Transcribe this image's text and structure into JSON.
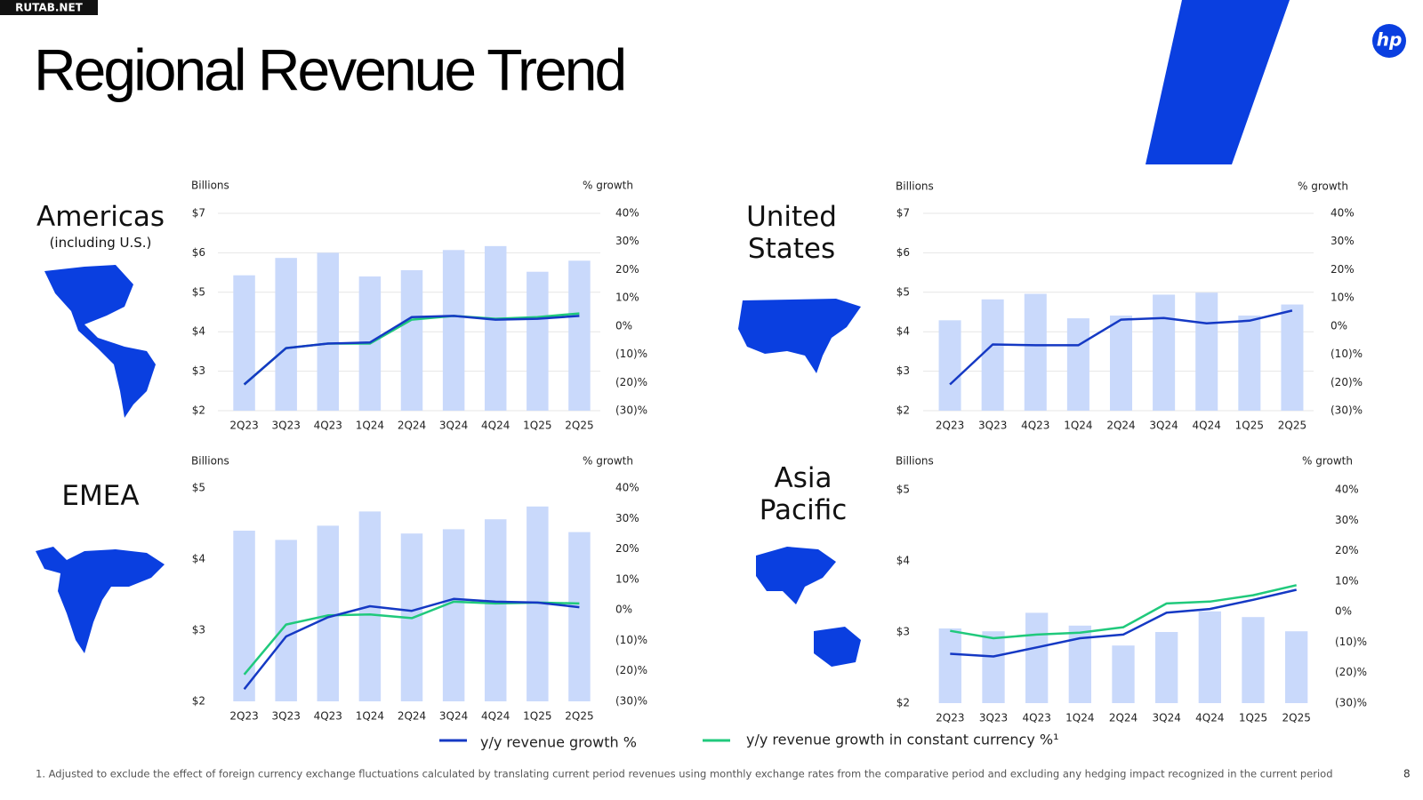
{
  "watermark": "RUTAB.NET",
  "title": "Regional Revenue Trend",
  "logo": "hp",
  "legend": [
    {
      "name": "y/y revenue growth %",
      "color": "#1539c4"
    },
    {
      "name": "y/y revenue growth in constant currency %¹",
      "color": "#20c97c"
    }
  ],
  "footnote": "1.  Adjusted to exclude the effect of foreign currency exchange fluctuations calculated by translating current period revenues using monthly exchange rates from the comparative period and excluding any hedging impact recognized in the current period",
  "page_number": "8",
  "chart_data": [
    {
      "type": "combo",
      "region": "Americas",
      "subtitle": "(including U.S.)",
      "ylabel": "Billions",
      "y2label": "% growth",
      "grid": true,
      "categories": [
        "2Q23",
        "3Q23",
        "4Q23",
        "1Q24",
        "2Q24",
        "3Q24",
        "4Q24",
        "1Q25",
        "2Q25"
      ],
      "ylim": [
        2,
        7
      ],
      "yticks": [
        {
          "value": 2,
          "label": "$2"
        },
        {
          "value": 3,
          "label": "$3"
        },
        {
          "value": 4,
          "label": "$4"
        },
        {
          "value": 5,
          "label": "$5"
        },
        {
          "value": 6,
          "label": "$6"
        },
        {
          "value": 7,
          "label": "$7"
        }
      ],
      "y2lim": [
        -30,
        40
      ],
      "y2ticks": [
        {
          "value": -30,
          "label": "(30)%"
        },
        {
          "value": -20,
          "label": "(20)%"
        },
        {
          "value": -10,
          "label": "(10)%"
        },
        {
          "value": 0,
          "label": "0%"
        },
        {
          "value": 10,
          "label": "10%"
        },
        {
          "value": 20,
          "label": "20%"
        },
        {
          "value": 30,
          "label": "30%"
        },
        {
          "value": 40,
          "label": "40%"
        }
      ],
      "series": [
        {
          "type": "bar",
          "color": "#c9d9fb",
          "values": [
            5.43,
            5.87,
            6.0,
            5.4,
            5.56,
            6.07,
            6.17,
            5.52,
            5.8
          ]
        },
        {
          "type": "line",
          "axis": "y2",
          "color": "#20c97c",
          "values": [
            -20.7,
            -7.8,
            -6.2,
            -6.2,
            2.3,
            3.6,
            2.6,
            3.2,
            4.5
          ]
        },
        {
          "type": "line",
          "axis": "y2",
          "color": "#1539c4",
          "values": [
            -20.7,
            -7.8,
            -6.2,
            -5.8,
            3.2,
            3.6,
            2.3,
            2.6,
            3.6
          ]
        }
      ]
    },
    {
      "type": "combo",
      "region": "United States",
      "ylabel": "Billions",
      "y2label": "% growth",
      "grid": true,
      "categories": [
        "2Q23",
        "3Q23",
        "4Q23",
        "1Q24",
        "2Q24",
        "3Q24",
        "4Q24",
        "1Q25",
        "2Q25"
      ],
      "ylim": [
        2,
        7
      ],
      "yticks": [
        {
          "value": 2,
          "label": "$2"
        },
        {
          "value": 3,
          "label": "$3"
        },
        {
          "value": 4,
          "label": "$4"
        },
        {
          "value": 5,
          "label": "$5"
        },
        {
          "value": 6,
          "label": "$6"
        },
        {
          "value": 7,
          "label": "$7"
        }
      ],
      "y2lim": [
        -30,
        40
      ],
      "y2ticks": [
        {
          "value": -30,
          "label": "(30)%"
        },
        {
          "value": -20,
          "label": "(20)%"
        },
        {
          "value": -10,
          "label": "(10)%"
        },
        {
          "value": 0,
          "label": "0%"
        },
        {
          "value": 10,
          "label": "10%"
        },
        {
          "value": 20,
          "label": "20%"
        },
        {
          "value": 30,
          "label": "30%"
        },
        {
          "value": 40,
          "label": "40%"
        }
      ],
      "series": [
        {
          "type": "bar",
          "color": "#c9d9fb",
          "values": [
            4.29,
            4.82,
            4.96,
            4.34,
            4.41,
            4.94,
            4.99,
            4.41,
            4.69
          ]
        },
        {
          "type": "line",
          "axis": "y2",
          "color": "#1539c4",
          "values": [
            -20.7,
            -6.5,
            -6.8,
            -6.8,
            2.3,
            2.9,
            1.0,
            1.9,
            5.5
          ]
        }
      ]
    },
    {
      "type": "combo",
      "region": "EMEA",
      "ylabel": "Billions",
      "y2label": "% growth",
      "grid": false,
      "categories": [
        "2Q23",
        "3Q23",
        "4Q23",
        "1Q24",
        "2Q24",
        "3Q24",
        "4Q24",
        "1Q25",
        "2Q25"
      ],
      "ylim": [
        2,
        5
      ],
      "yticks": [
        {
          "value": 2,
          "label": "$2"
        },
        {
          "value": 3,
          "label": "$3"
        },
        {
          "value": 4,
          "label": "$4"
        },
        {
          "value": 5,
          "label": "$5"
        }
      ],
      "y2lim": [
        -30,
        40
      ],
      "y2ticks": [
        {
          "value": -30,
          "label": "(30)%"
        },
        {
          "value": -20,
          "label": "(20)%"
        },
        {
          "value": -10,
          "label": "(10)%"
        },
        {
          "value": 0,
          "label": "0%"
        },
        {
          "value": 10,
          "label": "10%"
        },
        {
          "value": 20,
          "label": "20%"
        },
        {
          "value": 30,
          "label": "30%"
        },
        {
          "value": 40,
          "label": "40%"
        }
      ],
      "series": [
        {
          "type": "bar",
          "color": "#c9d9fb",
          "values": [
            4.4,
            4.27,
            4.47,
            4.67,
            4.36,
            4.42,
            4.56,
            4.74,
            4.38
          ]
        },
        {
          "type": "line",
          "axis": "y2",
          "color": "#20c97c",
          "values": [
            -21.2,
            -4.8,
            -1.8,
            -1.5,
            -2.7,
            2.7,
            2.1,
            2.4,
            2.1
          ]
        },
        {
          "type": "line",
          "axis": "y2",
          "color": "#1539c4",
          "values": [
            -26,
            -8.7,
            -2.4,
            1.2,
            -0.3,
            3.6,
            2.7,
            2.4,
            0.9
          ]
        }
      ]
    },
    {
      "type": "combo",
      "region": "Asia Pacific",
      "ylabel": "Billions",
      "y2label": "% growth",
      "grid": false,
      "categories": [
        "2Q23",
        "3Q23",
        "4Q23",
        "1Q24",
        "2Q24",
        "3Q24",
        "4Q24",
        "1Q25",
        "2Q25"
      ],
      "ylim": [
        2,
        5
      ],
      "yticks": [
        {
          "value": 2,
          "label": "$2"
        },
        {
          "value": 3,
          "label": "$3"
        },
        {
          "value": 4,
          "label": "$4"
        },
        {
          "value": 5,
          "label": "$5"
        }
      ],
      "y2lim": [
        -30,
        40
      ],
      "y2ticks": [
        {
          "value": -30,
          "label": "(30)%"
        },
        {
          "value": -20,
          "label": "(20)%"
        },
        {
          "value": -10,
          "label": "(10)%"
        },
        {
          "value": 0,
          "label": "0%"
        },
        {
          "value": 10,
          "label": "10%"
        },
        {
          "value": 20,
          "label": "20%"
        },
        {
          "value": 30,
          "label": "30%"
        },
        {
          "value": 40,
          "label": "40%"
        }
      ],
      "series": [
        {
          "type": "bar",
          "color": "#c9d9fb",
          "values": [
            3.05,
            3.01,
            3.27,
            3.09,
            2.81,
            3.0,
            3.29,
            3.21,
            3.01
          ]
        },
        {
          "type": "line",
          "axis": "y2",
          "color": "#20c97c",
          "values": [
            -6.3,
            -8.7,
            -7.5,
            -6.9,
            -5.1,
            2.7,
            3.3,
            5.4,
            8.7
          ]
        },
        {
          "type": "line",
          "axis": "y2",
          "color": "#1539c4",
          "values": [
            -13.8,
            -14.7,
            -11.7,
            -8.7,
            -7.5,
            -0.3,
            0.9,
            3.9,
            7.2
          ]
        }
      ]
    }
  ]
}
